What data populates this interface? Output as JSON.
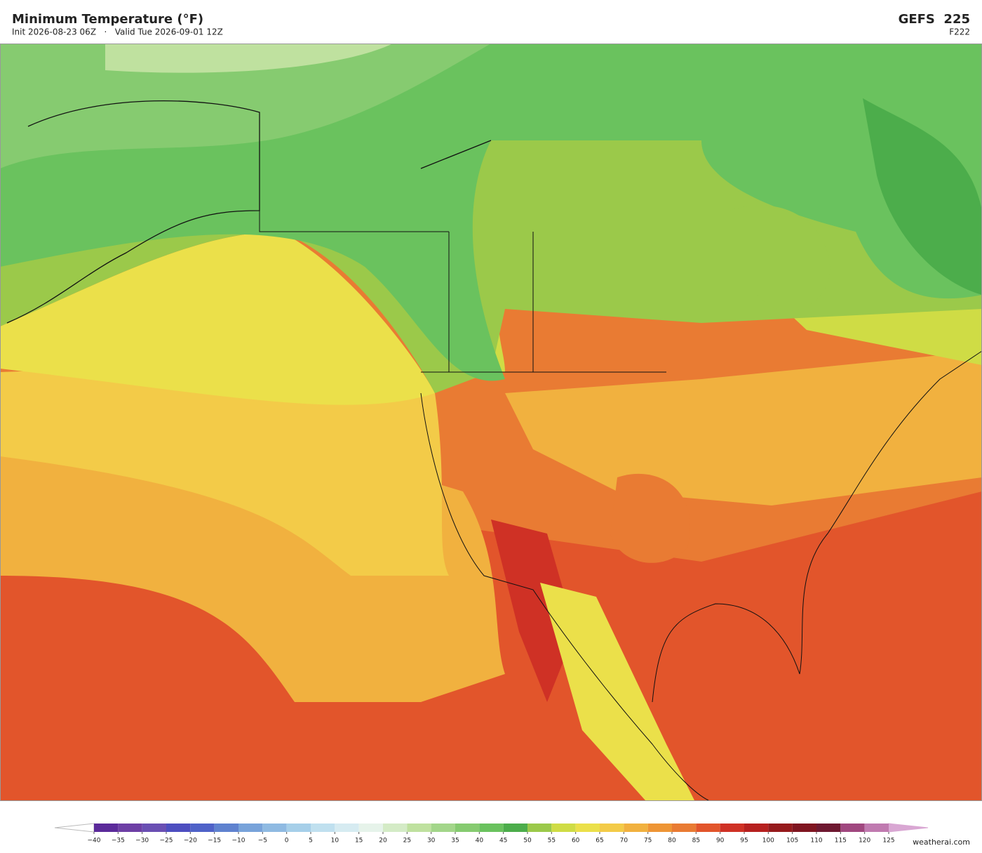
{
  "header": {
    "title": "Minimum Temperature  (°F)",
    "subtitle": "Init 2026-08-23 06Z   ·   Valid Tue 2026-09-01 12Z",
    "model": "GEFS  225",
    "forecast_hour": "F222"
  },
  "colorbar": {
    "ticks": [
      {
        "value": -40,
        "label": "−40"
      },
      {
        "value": -35,
        "label": "−35"
      },
      {
        "value": -30,
        "label": "−30"
      },
      {
        "value": -25,
        "label": "−25"
      },
      {
        "value": -20,
        "label": "−20"
      },
      {
        "value": -15,
        "label": "−15"
      },
      {
        "value": -10,
        "label": "−10"
      },
      {
        "value": -5,
        "label": "−5"
      },
      0,
      5,
      10,
      15,
      20,
      25,
      30,
      35,
      40,
      45,
      50,
      55,
      60,
      65,
      70,
      75,
      80,
      85,
      90,
      95,
      100,
      105,
      110,
      115,
      120,
      125
    ],
    "colors": [
      "#5b2a9a",
      "#6d3fa5",
      "#6a4fb3",
      "#4d4ec0",
      "#4f62c8",
      "#5f82cf",
      "#78a3da",
      "#8fbae2",
      "#a6cfe9",
      "#c0e0ef",
      "#d6ebf1",
      "#e6f3ea",
      "#d4ebc6",
      "#bfe19f",
      "#a3d68a",
      "#86cb70",
      "#6ac25e",
      "#4cad4b",
      "#9bc94a",
      "#cfdc45",
      "#ebe04a",
      "#f3cb48",
      "#f1b13f",
      "#ee9535",
      "#e97b33",
      "#e2552b",
      "#cf3125",
      "#b6201f",
      "#961a1c",
      "#7f1520",
      "#6e1830",
      "#a0477f",
      "#c07ab0"
    ],
    "under_color": "#ffffff",
    "over_color": "#d9a7d3"
  },
  "footer": {
    "credit": "weatherai.com"
  }
}
